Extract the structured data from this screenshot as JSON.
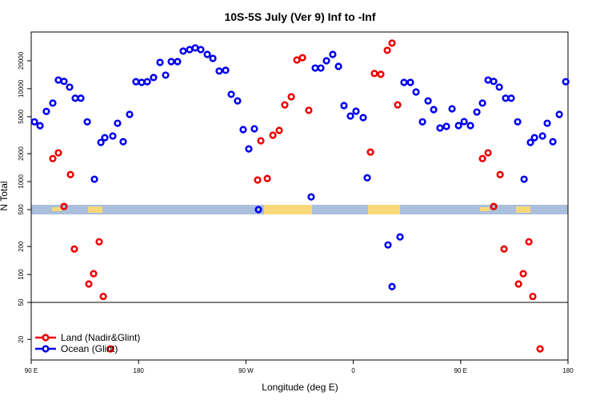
{
  "chart_data": {
    "type": "scatter",
    "title": "10S-5S July (Ver 9)   Inf to -Inf",
    "xlabel": "Longitude (deg E)",
    "ylabel": "N Total",
    "xlim": [
      90,
      540
    ],
    "xticks": [
      {
        "value": 90,
        "label": "90 E"
      },
      {
        "value": 180,
        "label": "180"
      },
      {
        "value": 270,
        "label": "90 W"
      },
      {
        "value": 360,
        "label": "0"
      },
      {
        "value": 450,
        "label": "90 E"
      },
      {
        "value": 540,
        "label": "180"
      }
    ],
    "ylim": [
      12,
      40800
    ],
    "log_y": true,
    "yticks": [
      20,
      50,
      100,
      200,
      500,
      1000,
      2000,
      5000,
      10000,
      20000
    ],
    "legend": "lower left",
    "series": [
      {
        "name": "Land (Nadir&Glint)",
        "color": "#ee0000",
        "x": [
          108.1,
          112.8,
          117.5,
          122.9,
          126.2,
          138.3,
          142.3,
          147,
          150.4,
          156.4,
          279.8,
          282.5,
          287.9,
          292.6,
          297.9,
          302.6,
          308,
          312.7,
          317.4,
          322.7,
          374.4,
          377.7,
          383.1,
          388.5,
          392.5,
          397.2,
          468.3,
          473,
          477.7,
          483.1,
          486.4,
          498.5,
          502.5,
          507.2,
          510.5,
          516.6
        ],
        "values": [
          1770,
          2040,
          540,
          1190,
          188,
          79,
          102,
          225,
          58,
          15.8,
          1040,
          2750,
          1080,
          3160,
          3560,
          6700,
          8180,
          20400,
          21600,
          5850,
          2080,
          14600,
          14300,
          25900,
          31000,
          6700,
          1770,
          2040,
          540,
          1190,
          188,
          79,
          102,
          225,
          58,
          15.8
        ]
      },
      {
        "name": "Ocean (Glint)",
        "color": "#0000ee",
        "x": [
          92.7,
          97.4,
          102.7,
          108.1,
          112.8,
          117.5,
          122.2,
          126.9,
          131.6,
          137,
          143,
          148.4,
          151.7,
          158.4,
          162.4,
          167.1,
          172.5,
          177.8,
          182.6,
          187.3,
          192.6,
          198,
          202.7,
          207.4,
          212.7,
          217.4,
          222.8,
          227.5,
          232.2,
          237.6,
          242.3,
          247.6,
          253,
          257.7,
          263,
          267.7,
          272.4,
          277.1,
          280.5,
          324.7,
          328.1,
          332.8,
          337.5,
          342.8,
          347.6,
          352.2,
          357.6,
          362.3,
          368.3,
          371.7,
          389.1,
          392.5,
          399.2,
          402.5,
          407.9,
          412.6,
          418,
          422.7,
          427.4,
          432.7,
          438.1,
          442.8,
          448.2,
          452.9,
          458.2,
          463.6,
          468.3,
          473,
          477.7,
          482.4,
          487.7,
          492.4,
          497.8,
          503.2,
          508.5,
          511.9,
          518.6,
          522.6,
          527.3,
          532.7,
          538.1
        ],
        "values": [
          4400,
          4000,
          5700,
          7000,
          12400,
          12000,
          10400,
          7900,
          7900,
          4400,
          1060,
          2640,
          2970,
          3100,
          4250,
          2690,
          5290,
          11900,
          11700,
          11900,
          13200,
          19200,
          14000,
          19600,
          19600,
          25400,
          26400,
          27500,
          26400,
          23400,
          21200,
          15500,
          15800,
          8700,
          7400,
          3630,
          2250,
          3700,
          500,
          684,
          16700,
          16700,
          20000,
          23400,
          17400,
          6580,
          5080,
          5730,
          4890,
          1100,
          208,
          74,
          254,
          11700,
          11700,
          9220,
          4400,
          7400,
          5960,
          3780,
          3930,
          6080,
          4010,
          4430,
          4010,
          5610,
          7000,
          12400,
          12000,
          10400,
          7900,
          7900,
          4400,
          1060,
          2640,
          2970,
          3100,
          4250,
          2690,
          5290,
          11900
        ]
      }
    ]
  }
}
